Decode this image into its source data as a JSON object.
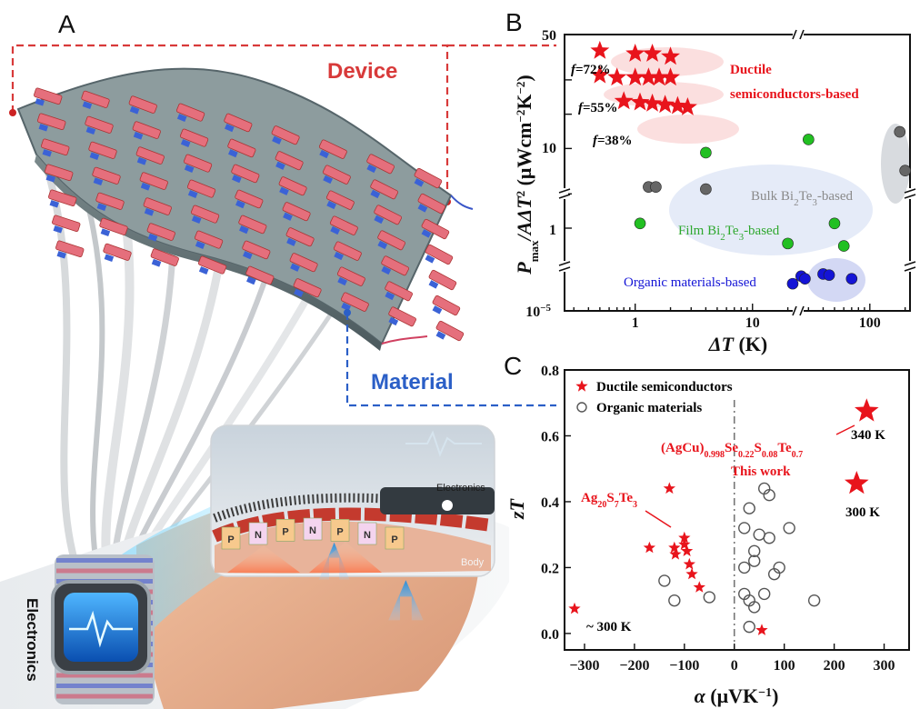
{
  "panels": {
    "a": {
      "letter": "A",
      "device_label": "Device",
      "material_label": "Material",
      "electronics_label": "Electronics",
      "inset_electronics_label": "Electronics",
      "inset_body_label": "Body",
      "leg_letters": [
        "P",
        "N",
        "P",
        "N",
        "P",
        "N",
        "P"
      ],
      "colors": {
        "device": "#d83a3a",
        "material": "#2b5fc7"
      }
    },
    "b": {
      "letter": "B",
      "ytick_top": "50",
      "ytick_10": "10",
      "ytick_1": "1",
      "ytick_bottom": "10",
      "ytick_bottom_exp": "−5",
      "xtick_labels": [
        "1",
        "10",
        "100"
      ],
      "annotations": {
        "f72": "=72%",
        "f55": "=55%",
        "f38": "=38%",
        "f_letter": "f",
        "ductile_line1": "Ductile",
        "ductile_line2": "semiconductors-based",
        "bulk_a": "Bulk Bi",
        "bulk_sub1": "2",
        "bulk_b": "Te",
        "bulk_sub2": "3",
        "bulk_c": "-based",
        "film_a": "Film  Bi",
        "film_sub1": "2",
        "film_b": "Te",
        "film_sub2": "3",
        "film_c": "-based",
        "organic": "Organic materials-based"
      }
    },
    "c": {
      "letter": "C",
      "legend": [
        "Ductile semiconductors",
        "Organic materials"
      ],
      "annotations": {
        "t340": "340 K",
        "t300": "300 K",
        "this_work": "This work",
        "t300b": "~ 300 K",
        "formula": "(AgCu)0.998Se0.22S0.08Te0.7",
        "ag": "Ag20S7Te3"
      }
    }
  },
  "chart_data": [
    {
      "panel": "B",
      "type": "scatter",
      "xlabel_main": "ΔT",
      "xlabel_unit": " (K)",
      "ylabel_main": "P",
      "ylabel_sub": "max",
      "ylabel_rest": "/AΔT",
      "ylabel_sup": "2",
      "ylabel_unit": " (μWcm",
      "ylabel_unit_sup1": "−2",
      "ylabel_unit_mid": "K",
      "ylabel_unit_sup2": "−2",
      "ylabel_unit_end": ")",
      "x_scale": "log",
      "xlim": [
        0.25,
        220
      ],
      "y_scale": "log, broken axis",
      "series": [
        {
          "name": "Ductile semiconductors-based",
          "marker": "star",
          "color": "#e8141c",
          "points": [
            {
              "x": 0.5,
              "y": 36,
              "f": "f=72%"
            },
            {
              "x": 1.0,
              "y": 34
            },
            {
              "x": 1.4,
              "y": 34
            },
            {
              "x": 2.0,
              "y": 32
            },
            {
              "x": 0.5,
              "y": 22,
              "f": "f=55%"
            },
            {
              "x": 0.7,
              "y": 21
            },
            {
              "x": 1.0,
              "y": 21
            },
            {
              "x": 1.3,
              "y": 21
            },
            {
              "x": 1.6,
              "y": 21
            },
            {
              "x": 2.0,
              "y": 21
            },
            {
              "x": 0.8,
              "y": 13,
              "f": "f=38%"
            },
            {
              "x": 1.1,
              "y": 12.7
            },
            {
              "x": 1.4,
              "y": 12.4
            },
            {
              "x": 1.8,
              "y": 12.1
            },
            {
              "x": 2.3,
              "y": 11.8
            },
            {
              "x": 2.8,
              "y": 11.5
            }
          ]
        },
        {
          "name": "Bulk Bi2Te3-based",
          "marker": "circle",
          "color": "#666666",
          "points": [
            {
              "x": 1.3,
              "y": 2.3
            },
            {
              "x": 1.5,
              "y": 2.3
            },
            {
              "x": 4,
              "y": 2.2
            },
            {
              "x": 180,
              "y": 7
            },
            {
              "x": 200,
              "y": 3.2
            }
          ]
        },
        {
          "name": "Film Bi2Te3-based",
          "marker": "circle",
          "color": "#22c022",
          "points": [
            {
              "x": 1.1,
              "y": 1.1
            },
            {
              "x": 4,
              "y": 4.6
            },
            {
              "x": 30,
              "y": 6
            },
            {
              "x": 50,
              "y": 1.1
            },
            {
              "x": 20,
              "y": 0.55
            },
            {
              "x": 60,
              "y": 0.5
            }
          ]
        },
        {
          "name": "Organic materials-based",
          "marker": "circle",
          "color": "#1414d6",
          "points": [
            {
              "x": 26,
              "y": 0.00012
            },
            {
              "x": 28,
              "y": 0.0001
            },
            {
              "x": 40,
              "y": 0.00014
            },
            {
              "x": 45,
              "y": 0.00013
            },
            {
              "x": 70,
              "y": 0.0001
            },
            {
              "x": 22,
              "y": 7e-05
            }
          ]
        }
      ]
    },
    {
      "panel": "C",
      "type": "scatter",
      "xlabel_main": "α",
      "xlabel_unit": " (μVK",
      "xlabel_unit_sup": "−1",
      "xlabel_unit_end": ")",
      "ylabel": "zT",
      "xlim": [
        -340,
        350
      ],
      "ylim": [
        -0.05,
        0.8
      ],
      "xticks": [
        -300,
        -200,
        -100,
        0,
        100,
        200,
        300
      ],
      "yticks": [
        0.0,
        0.2,
        0.4,
        0.6,
        0.8
      ],
      "xtick_labels": [
        "−300",
        "−200",
        "−100",
        "0",
        "100",
        "200",
        "300"
      ],
      "ytick_labels": [
        "0.0",
        "0.2",
        "0.4",
        "0.6",
        "0.8"
      ],
      "series": [
        {
          "name": "Ductile semiconductors",
          "marker": "star",
          "color": "#e8141c",
          "points": [
            {
              "x": -320,
              "y": 0.075
            },
            {
              "x": -170,
              "y": 0.26
            },
            {
              "x": -130,
              "y": 0.44
            },
            {
              "x": -120,
              "y": 0.26
            },
            {
              "x": -118,
              "y": 0.24
            },
            {
              "x": -100,
              "y": 0.29
            },
            {
              "x": -100,
              "y": 0.27
            },
            {
              "x": -95,
              "y": 0.25
            },
            {
              "x": -90,
              "y": 0.21
            },
            {
              "x": -85,
              "y": 0.18
            },
            {
              "x": -70,
              "y": 0.14
            },
            {
              "x": 55,
              "y": 0.01
            }
          ]
        },
        {
          "name": "This work",
          "marker": "star",
          "color": "#e8141c",
          "points": [
            {
              "x": 265,
              "y": 0.675,
              "label": "340 K"
            },
            {
              "x": 245,
              "y": 0.455,
              "label": "300 K"
            }
          ]
        },
        {
          "name": "Organic materials",
          "marker": "open-circle",
          "color": "#555555",
          "points": [
            {
              "x": -140,
              "y": 0.16
            },
            {
              "x": -120,
              "y": 0.1
            },
            {
              "x": -50,
              "y": 0.11
            },
            {
              "x": 30,
              "y": 0.38
            },
            {
              "x": 60,
              "y": 0.44
            },
            {
              "x": 70,
              "y": 0.42
            },
            {
              "x": 20,
              "y": 0.32
            },
            {
              "x": 50,
              "y": 0.3
            },
            {
              "x": 110,
              "y": 0.32
            },
            {
              "x": 40,
              "y": 0.25
            },
            {
              "x": 40,
              "y": 0.22
            },
            {
              "x": 20,
              "y": 0.2
            },
            {
              "x": 90,
              "y": 0.2
            },
            {
              "x": 80,
              "y": 0.18
            },
            {
              "x": 60,
              "y": 0.12
            },
            {
              "x": 30,
              "y": 0.1
            },
            {
              "x": 40,
              "y": 0.08
            },
            {
              "x": 20,
              "y": 0.12
            },
            {
              "x": 30,
              "y": 0.02
            },
            {
              "x": 160,
              "y": 0.1
            },
            {
              "x": 70,
              "y": 0.29
            }
          ]
        }
      ]
    }
  ]
}
